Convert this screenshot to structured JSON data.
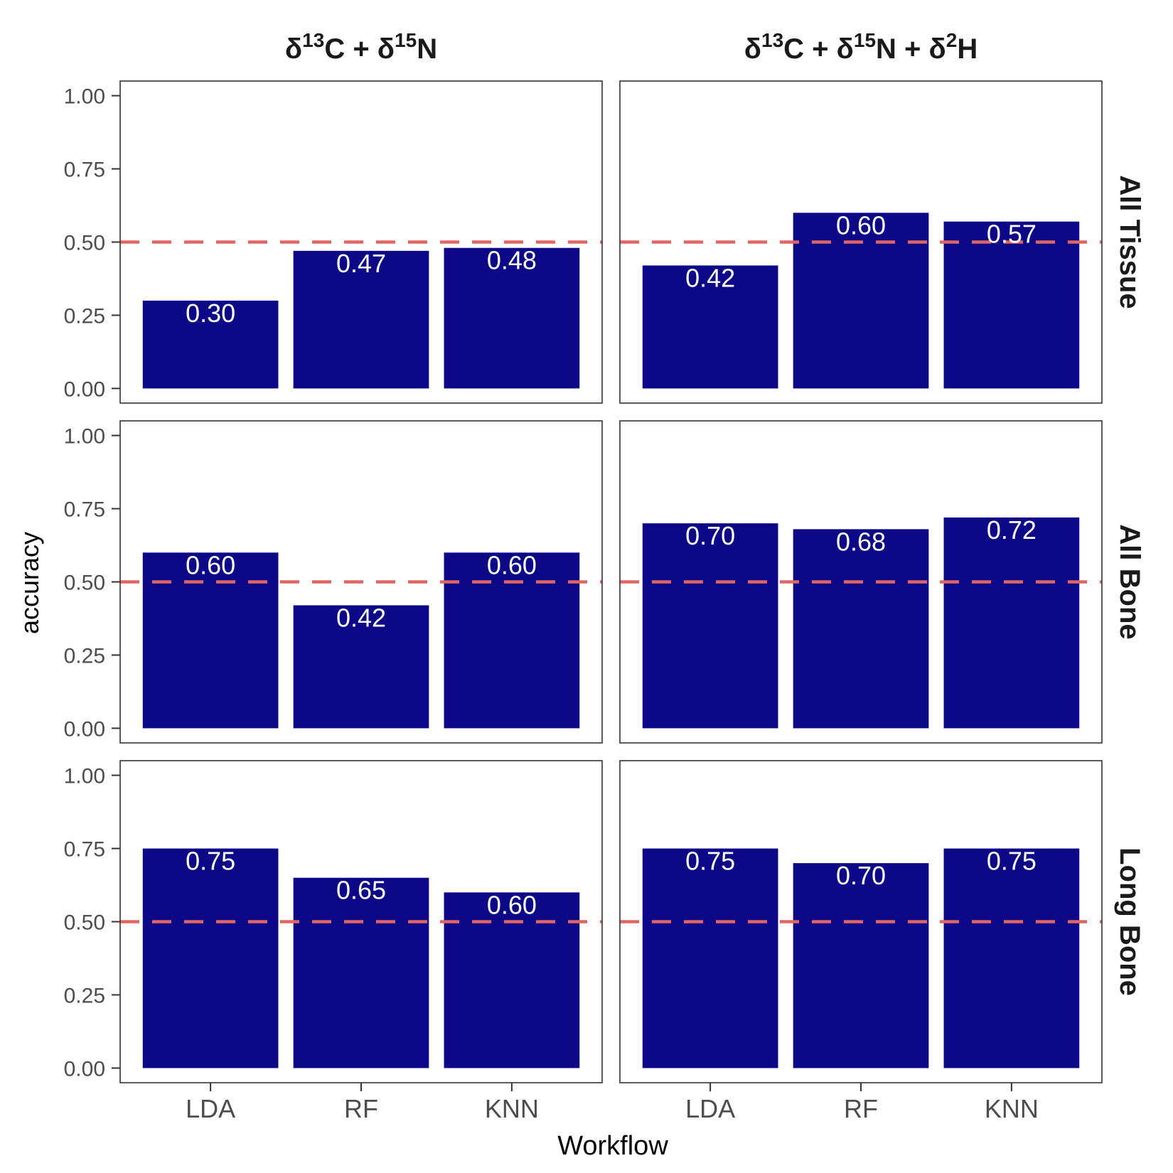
{
  "chart_data": {
    "type": "bar",
    "xlabel": "Workflow",
    "ylabel": "accuracy",
    "ylim": [
      0,
      1
    ],
    "yticks": [
      "0.00",
      "0.25",
      "0.50",
      "0.75",
      "1.00"
    ],
    "categories": [
      "LDA",
      "RF",
      "KNN"
    ],
    "reference_line": {
      "y": 0.5,
      "style": "dashed",
      "color": "#E06666"
    },
    "bar_color": "#0D0887",
    "column_facets": [
      {
        "parts": [
          {
            "b": "δ",
            "s": "13",
            "e": "C"
          },
          {
            "b": " + δ",
            "s": "15",
            "e": "N"
          }
        ]
      },
      {
        "parts": [
          {
            "b": "δ",
            "s": "13",
            "e": "C"
          },
          {
            "b": " + δ",
            "s": "15",
            "e": "N"
          },
          {
            "b": " + δ",
            "s": "2",
            "e": "H"
          }
        ]
      }
    ],
    "row_facets": [
      "All Tissue",
      "All Bone",
      "Long Bone"
    ],
    "panels": [
      {
        "row": 0,
        "col": 0,
        "values": [
          0.3,
          0.47,
          0.48
        ],
        "labels": [
          "0.30",
          "0.47",
          "0.48"
        ]
      },
      {
        "row": 0,
        "col": 1,
        "values": [
          0.42,
          0.6,
          0.57
        ],
        "labels": [
          "0.42",
          "0.60",
          "0.57"
        ]
      },
      {
        "row": 1,
        "col": 0,
        "values": [
          0.6,
          0.42,
          0.6
        ],
        "labels": [
          "0.60",
          "0.42",
          "0.60"
        ]
      },
      {
        "row": 1,
        "col": 1,
        "values": [
          0.7,
          0.68,
          0.72
        ],
        "labels": [
          "0.70",
          "0.68",
          "0.72"
        ]
      },
      {
        "row": 2,
        "col": 0,
        "values": [
          0.75,
          0.65,
          0.6
        ],
        "labels": [
          "0.75",
          "0.65",
          "0.60"
        ]
      },
      {
        "row": 2,
        "col": 1,
        "values": [
          0.75,
          0.7,
          0.75
        ],
        "labels": [
          "0.75",
          "0.70",
          "0.75"
        ]
      }
    ]
  }
}
